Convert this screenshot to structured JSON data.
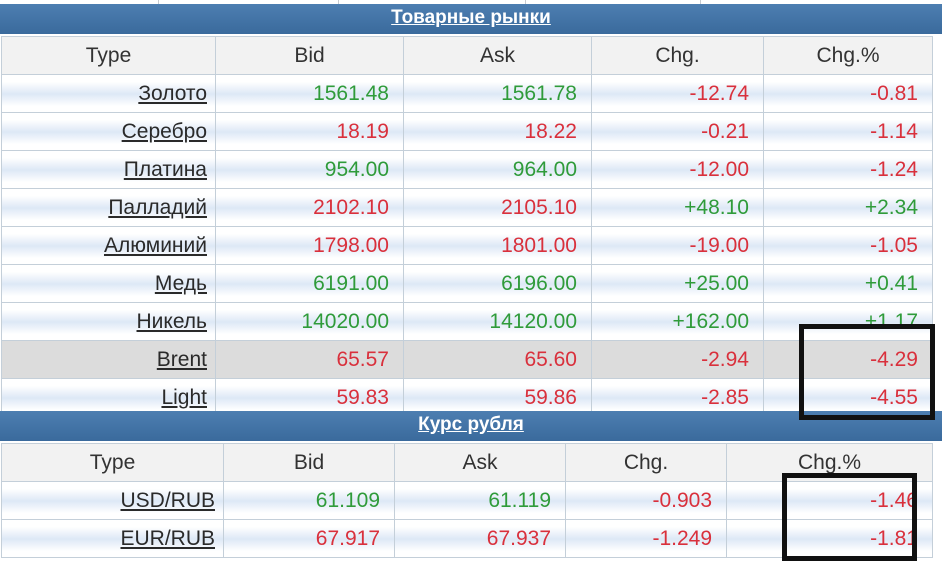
{
  "commodities": {
    "title": "Товарные рынки",
    "columns": [
      "Type",
      "Bid",
      "Ask",
      "Chg.",
      "Chg.%"
    ],
    "rows": [
      {
        "type": "Золото",
        "bid": "1561.48",
        "ask": "1561.78",
        "chg": "-12.74",
        "chg_pct": "-0.81",
        "bid_dir": "pos",
        "chg_dir": "neg"
      },
      {
        "type": "Серебро",
        "bid": "18.19",
        "ask": "18.22",
        "chg": "-0.21",
        "chg_pct": "-1.14",
        "bid_dir": "neg",
        "chg_dir": "neg"
      },
      {
        "type": "Платина",
        "bid": "954.00",
        "ask": "964.00",
        "chg": "-12.00",
        "chg_pct": "-1.24",
        "bid_dir": "pos",
        "chg_dir": "neg"
      },
      {
        "type": "Палладий",
        "bid": "2102.10",
        "ask": "2105.10",
        "chg": "+48.10",
        "chg_pct": "+2.34",
        "bid_dir": "neg",
        "chg_dir": "pos"
      },
      {
        "type": "Алюминий",
        "bid": "1798.00",
        "ask": "1801.00",
        "chg": "-19.00",
        "chg_pct": "-1.05",
        "bid_dir": "neg",
        "chg_dir": "neg"
      },
      {
        "type": "Медь",
        "bid": "6191.00",
        "ask": "6196.00",
        "chg": "+25.00",
        "chg_pct": "+0.41",
        "bid_dir": "pos",
        "chg_dir": "pos"
      },
      {
        "type": "Никель",
        "bid": "14020.00",
        "ask": "14120.00",
        "chg": "+162.00",
        "chg_pct": "+1.17",
        "bid_dir": "pos",
        "chg_dir": "pos"
      },
      {
        "type": "Brent",
        "bid": "65.57",
        "ask": "65.60",
        "chg": "-2.94",
        "chg_pct": "-4.29",
        "bid_dir": "neg",
        "chg_dir": "neg"
      },
      {
        "type": "Light",
        "bid": "59.83",
        "ask": "59.86",
        "chg": "-2.85",
        "chg_pct": "-4.55",
        "bid_dir": "neg",
        "chg_dir": "neg"
      }
    ]
  },
  "ruble": {
    "title": "Курс рубля",
    "columns": [
      "Type",
      "Bid",
      "Ask",
      "Chg.",
      "Chg.%"
    ],
    "rows": [
      {
        "type": "USD/RUB",
        "bid": "61.109",
        "ask": "61.119",
        "chg": "-0.903",
        "chg_pct": "-1.46",
        "bid_dir": "pos",
        "chg_dir": "neg"
      },
      {
        "type": "EUR/RUB",
        "bid": "67.917",
        "ask": "67.937",
        "chg": "-1.249",
        "chg_pct": "-1.81",
        "bid_dir": "neg",
        "chg_dir": "neg"
      }
    ]
  },
  "colors": {
    "positive": "#2f9b3a",
    "negative": "#d9303c",
    "header_bar": "#4572a3"
  }
}
